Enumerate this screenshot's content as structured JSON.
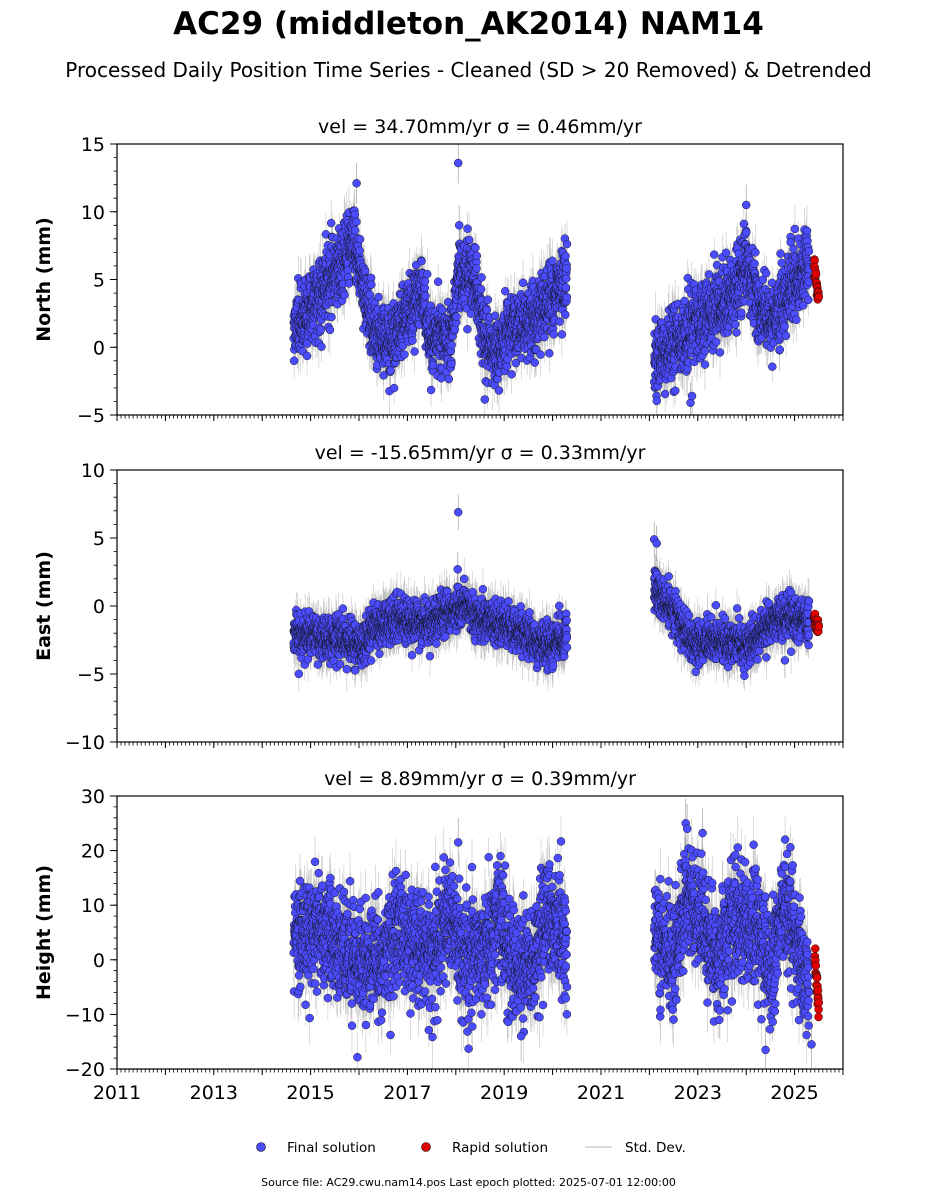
{
  "title": "AC29 (middleton_AK2014) NAM14",
  "subtitle": "Processed Daily Position Time Series - Cleaned (SD > 20 Removed) & Detrended",
  "footer": "Source file: AC29.cwu.nam14.pos  Last epoch plotted: 2025-07-01 12:00:00",
  "colors": {
    "final": "#4b4bff",
    "rapid": "#e00000",
    "errorbar": "#8a8a8a",
    "marker_edge": "#111111"
  },
  "legend": {
    "placement": "bottom-center",
    "items": [
      {
        "label": "Final solution",
        "marker": "blue-dot"
      },
      {
        "label": "Rapid solution",
        "marker": "red-dot"
      },
      {
        "label": "Std. Dev.",
        "marker": "gray-line"
      }
    ]
  },
  "chart_data": [
    {
      "type": "scatter",
      "panel": "north",
      "title": "vel = 34.70mm/yr   σ = 0.46mm/yr",
      "ylabel": "North (mm)",
      "xlabel": "",
      "xlim": [
        2011,
        2026
      ],
      "ylim": [
        -5,
        15
      ],
      "yticks": [
        -5,
        0,
        5,
        10,
        15
      ],
      "xticks": [
        2011,
        2013,
        2015,
        2017,
        2019,
        2021,
        2023,
        2025
      ],
      "xtick_labels_visible": false,
      "grid": false,
      "segments": [
        {
          "range": [
            2014.65,
            2020.3
          ],
          "points": [
            [
              2014.65,
              1.5
            ],
            [
              2015.0,
              3.0
            ],
            [
              2015.5,
              5.5
            ],
            [
              2015.9,
              8.0
            ],
            [
              2016.05,
              5.0
            ],
            [
              2016.3,
              1.0
            ],
            [
              2016.7,
              0.5
            ],
            [
              2017.0,
              2.5
            ],
            [
              2017.3,
              4.5
            ],
            [
              2017.5,
              0.5
            ],
            [
              2017.9,
              0.8
            ],
            [
              2018.05,
              5.5
            ],
            [
              2018.4,
              5.0
            ],
            [
              2018.6,
              0.5
            ],
            [
              2018.9,
              -0.5
            ],
            [
              2019.1,
              1.5
            ],
            [
              2019.5,
              1.8
            ],
            [
              2019.9,
              3.5
            ],
            [
              2020.3,
              5.0
            ]
          ]
        },
        {
          "range": [
            2022.1,
            2025.3
          ],
          "points": [
            [
              2022.1,
              -0.8
            ],
            [
              2022.5,
              0.2
            ],
            [
              2022.9,
              1.5
            ],
            [
              2023.3,
              2.5
            ],
            [
              2023.7,
              3.5
            ],
            [
              2024.0,
              6.5
            ],
            [
              2024.2,
              3.5
            ],
            [
              2024.5,
              2.0
            ],
            [
              2024.8,
              3.5
            ],
            [
              2025.1,
              5.0
            ],
            [
              2025.3,
              5.8
            ]
          ]
        }
      ],
      "scatter_sd": 1.3,
      "errorbar_sd": 1.5,
      "outliers": [
        [
          2018.05,
          13.6
        ],
        [
          2018.07,
          9.0
        ],
        [
          2015.95,
          12.1
        ],
        [
          2022.85,
          -4.1
        ],
        [
          2022.88,
          -3.6
        ],
        [
          2024.0,
          10.5
        ]
      ],
      "rapid": {
        "range": [
          2025.4,
          2025.5
        ],
        "points": [
          [
            2025.4,
            6.0
          ],
          [
            2025.5,
            3.5
          ]
        ],
        "scatter_sd": 0.7
      }
    },
    {
      "type": "scatter",
      "panel": "east",
      "title": "vel = -15.65mm/yr   σ = 0.33mm/yr",
      "ylabel": "East (mm)",
      "xlabel": "",
      "xlim": [
        2011,
        2026
      ],
      "ylim": [
        -10,
        10
      ],
      "yticks": [
        -10,
        -5,
        0,
        5,
        10
      ],
      "xticks": [
        2011,
        2013,
        2015,
        2017,
        2019,
        2021,
        2023,
        2025
      ],
      "xtick_labels_visible": false,
      "grid": false,
      "segments": [
        {
          "range": [
            2014.65,
            2020.3
          ],
          "points": [
            [
              2014.65,
              -2.0
            ],
            [
              2015.2,
              -2.3
            ],
            [
              2015.8,
              -2.5
            ],
            [
              2016.1,
              -3.0
            ],
            [
              2016.3,
              -1.5
            ],
            [
              2016.8,
              -1.0
            ],
            [
              2017.4,
              -1.2
            ],
            [
              2017.9,
              -0.5
            ],
            [
              2018.1,
              0.0
            ],
            [
              2018.6,
              -1.0
            ],
            [
              2019.2,
              -1.5
            ],
            [
              2019.6,
              -2.5
            ],
            [
              2020.0,
              -3.0
            ],
            [
              2020.3,
              -2.0
            ]
          ]
        },
        {
          "range": [
            2022.1,
            2025.3
          ],
          "points": [
            [
              2022.1,
              1.2
            ],
            [
              2022.4,
              0.0
            ],
            [
              2022.7,
              -1.5
            ],
            [
              2022.95,
              -3.0
            ],
            [
              2023.3,
              -2.5
            ],
            [
              2023.7,
              -2.7
            ],
            [
              2024.0,
              -3.0
            ],
            [
              2024.3,
              -2.0
            ],
            [
              2024.6,
              -1.0
            ],
            [
              2024.9,
              -0.8
            ],
            [
              2025.3,
              -1.0
            ]
          ]
        }
      ],
      "scatter_sd": 0.75,
      "errorbar_sd": 1.3,
      "outliers": [
        [
          2018.05,
          6.9
        ],
        [
          2018.04,
          2.7
        ],
        [
          2022.1,
          4.9
        ],
        [
          2022.15,
          4.6
        ],
        [
          2024.8,
          -4.0
        ]
      ],
      "rapid": {
        "range": [
          2025.4,
          2025.5
        ],
        "points": [
          [
            2025.4,
            -0.8
          ],
          [
            2025.5,
            -1.8
          ]
        ],
        "scatter_sd": 0.6
      }
    },
    {
      "type": "scatter",
      "panel": "height",
      "title": "vel = 8.89mm/yr   σ = 0.39mm/yr",
      "ylabel": "Height (mm)",
      "xlabel": "",
      "xlim": [
        2011,
        2026
      ],
      "ylim": [
        -20,
        30
      ],
      "yticks": [
        -20,
        -10,
        0,
        10,
        20,
        30
      ],
      "xticks": [
        2011,
        2013,
        2015,
        2017,
        2019,
        2021,
        2023,
        2025
      ],
      "xtick_labels_visible": true,
      "grid": false,
      "segments": [
        {
          "range": [
            2014.65,
            2020.3
          ],
          "points": [
            [
              2014.65,
              4.0
            ],
            [
              2015.2,
              6.0
            ],
            [
              2015.6,
              3.0
            ],
            [
              2016.0,
              0.0
            ],
            [
              2016.3,
              -2.0
            ],
            [
              2016.9,
              6.0
            ],
            [
              2017.2,
              3.0
            ],
            [
              2017.6,
              2.0
            ],
            [
              2017.9,
              9.0
            ],
            [
              2018.1,
              1.0
            ],
            [
              2018.6,
              2.0
            ],
            [
              2018.9,
              8.0
            ],
            [
              2019.2,
              -1.0
            ],
            [
              2019.6,
              0.0
            ],
            [
              2019.9,
              8.0
            ],
            [
              2020.3,
              2.0
            ]
          ]
        },
        {
          "range": [
            2022.1,
            2025.3
          ],
          "points": [
            [
              2022.1,
              5.0
            ],
            [
              2022.5,
              0.0
            ],
            [
              2022.8,
              12.0
            ],
            [
              2023.1,
              7.0
            ],
            [
              2023.4,
              -1.0
            ],
            [
              2023.8,
              9.0
            ],
            [
              2024.2,
              6.0
            ],
            [
              2024.5,
              -2.0
            ],
            [
              2024.8,
              10.0
            ],
            [
              2025.1,
              2.0
            ],
            [
              2025.3,
              -8.0
            ]
          ]
        }
      ],
      "scatter_sd": 5.0,
      "errorbar_sd": 4.5,
      "outliers": [
        [
          2018.05,
          21.5
        ],
        [
          2022.75,
          25.0
        ],
        [
          2022.78,
          24.0
        ],
        [
          2023.1,
          23.2
        ],
        [
          2019.35,
          -14.0
        ],
        [
          2024.4,
          -16.5
        ],
        [
          2025.35,
          -15.5
        ]
      ],
      "rapid": {
        "range": [
          2025.42,
          2025.5
        ],
        "points": [
          [
            2025.42,
            0.0
          ],
          [
            2025.5,
            -9.0
          ]
        ],
        "scatter_sd": 2.8
      }
    }
  ]
}
